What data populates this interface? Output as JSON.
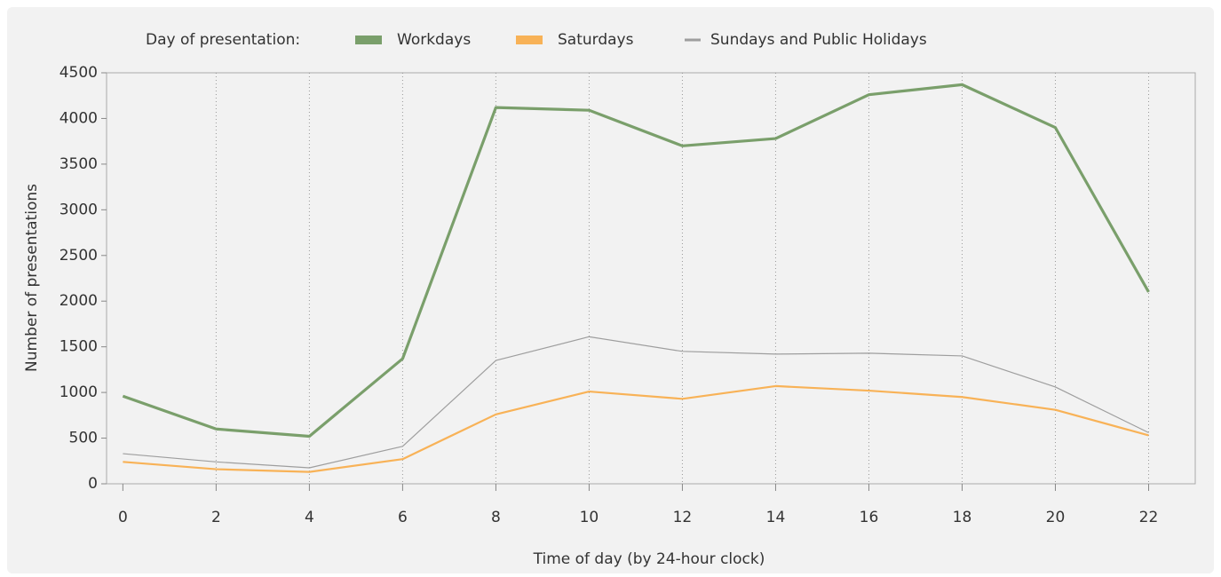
{
  "chart_data": {
    "type": "line",
    "legend_title": "Day of presentation:",
    "x_label": "Time of day (by 24-hour clock)",
    "y_label": "Number of presentations",
    "x": [
      0,
      2,
      4,
      6,
      8,
      10,
      12,
      14,
      16,
      18,
      20,
      22
    ],
    "series": [
      {
        "name": "Workdays",
        "color": "#7a9f6b",
        "values": [
          960,
          600,
          520,
          1370,
          4120,
          4090,
          3700,
          3780,
          4260,
          4370,
          3900,
          2100
        ]
      },
      {
        "name": "Saturdays",
        "color": "#f8b257",
        "values": [
          240,
          160,
          130,
          270,
          760,
          1010,
          930,
          1070,
          1020,
          950,
          810,
          530
        ]
      },
      {
        "name": "Sundays and Public Holidays",
        "color": "#9e9e9e",
        "values": [
          330,
          240,
          175,
          410,
          1350,
          1610,
          1450,
          1420,
          1430,
          1400,
          1060,
          560
        ]
      }
    ],
    "xlim": [
      -0.35,
      23
    ],
    "ylim": [
      0,
      4500
    ],
    "xticks": [
      0,
      2,
      4,
      6,
      8,
      10,
      12,
      14,
      16,
      18,
      20,
      22
    ],
    "yticks": [
      0,
      500,
      1000,
      1500,
      2000,
      2500,
      3000,
      3500,
      4000,
      4500
    ],
    "grid": "x",
    "legend_position": "top"
  }
}
